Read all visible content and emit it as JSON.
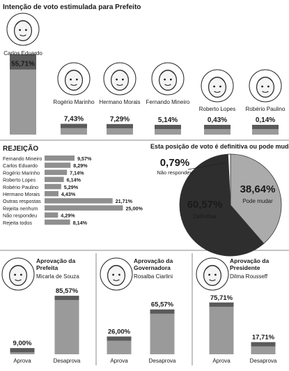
{
  "chart_data": [
    {
      "type": "bar",
      "title": "Intenção de voto estimulada para Prefeito",
      "categories": [
        "Carlos Eduardo",
        "Rogério Marinho",
        "Hermano Morais",
        "Fernando Mineiro",
        "Roberto Lopes",
        "Robério Paulino"
      ],
      "values": [
        55.71,
        7.43,
        7.29,
        5.14,
        0.43,
        0.14
      ],
      "labels": [
        "55,71%",
        "7,43%",
        "7,29%",
        "5,14%",
        "0,43%",
        "0,14%"
      ],
      "ylim": [
        0,
        60
      ],
      "colors": {
        "bar": "#9a9a9a",
        "bar_top": "#5a5a5a",
        "label_bg": "#5a5a5a"
      }
    },
    {
      "type": "bar",
      "title": "REJEIÇÃO",
      "orientation": "horizontal",
      "categories": [
        "Fernando Mineiro",
        "Carlos Eduardo",
        "Rogério Marinho",
        "Roberto Lopes",
        "Robério Paulino",
        "Hermano Morais",
        "Outras respostas",
        "Rejeita nenhum",
        "Não respondeu",
        "Rejeita todos"
      ],
      "values": [
        9.57,
        8.29,
        7.14,
        6.14,
        5.29,
        4.43,
        21.71,
        25.0,
        4.29,
        8.14
      ],
      "labels": [
        "9,57%",
        "8,29%",
        "7,14%",
        "6,14%",
        "5,29%",
        "4,43%",
        "21,71%",
        "25,00%",
        "4,29%",
        "8,14%"
      ],
      "xlim": [
        0,
        25
      ]
    },
    {
      "type": "pie",
      "title": "Esta posição de voto é definitiva ou pode mudar?",
      "slices": [
        {
          "name": "Definitiva",
          "value": 60.57,
          "label": "60,57%",
          "color": "#2e2e2e"
        },
        {
          "name": "Pode mudar",
          "value": 38.64,
          "label": "38,64%",
          "color": "#ababab"
        },
        {
          "name": "Não respondeu",
          "value": 0.79,
          "label": "0,79%",
          "color": "#ffffff"
        }
      ]
    },
    {
      "type": "bar",
      "title": "Aprovação da Prefeita",
      "person": "Micarla de Souza",
      "categories": [
        "Aprova",
        "Desaprova"
      ],
      "values": [
        9.0,
        85.57
      ],
      "labels": [
        "9,00%",
        "85,57%"
      ],
      "ylim": [
        0,
        100
      ]
    },
    {
      "type": "bar",
      "title": "Aprovação da Governadora",
      "person": "Rosalba Ciarlini",
      "categories": [
        "Aprova",
        "Desaprova"
      ],
      "values": [
        26.0,
        65.57
      ],
      "labels": [
        "26,00%",
        "65,57%"
      ],
      "ylim": [
        0,
        100
      ]
    },
    {
      "type": "bar",
      "title": "Aprovação da Presidente",
      "person": "Dilma Rousseff",
      "categories": [
        "Aprova",
        "Desaprova"
      ],
      "values": [
        75.71,
        17.71
      ],
      "labels": [
        "75,71%",
        "17,71%"
      ],
      "ylim": [
        0,
        100
      ]
    }
  ]
}
